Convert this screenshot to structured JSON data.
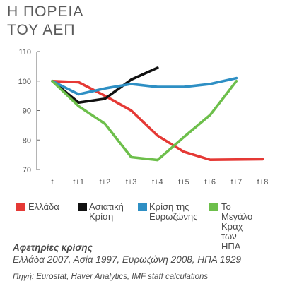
{
  "title": {
    "line1": "Η ΠΟΡΕΙΑ",
    "line2": "ΤΟΥ ΑΕΠ"
  },
  "chart_data": {
    "type": "line",
    "categories": [
      "t",
      "t+1",
      "t+2",
      "t+3",
      "t+4",
      "t+5",
      "t+6",
      "t+7",
      "t+8"
    ],
    "ylim": [
      70,
      110
    ],
    "yticks": [
      70,
      80,
      90,
      100,
      110
    ],
    "grid": false,
    "legend_position": "bottom",
    "series": [
      {
        "name": "Ελλάδα",
        "color": "#e53935",
        "x": [
          0,
          1,
          2,
          3,
          4,
          5,
          6,
          7,
          8
        ],
        "values": [
          100,
          99.6,
          95,
          90,
          81.5,
          76,
          73.3,
          73.4,
          73.5
        ]
      },
      {
        "name": "Ασιατική\nΚρίση",
        "color": "#111111",
        "x": [
          0,
          1,
          2,
          3,
          4
        ],
        "values": [
          100,
          92.7,
          94,
          100.5,
          104.5
        ]
      },
      {
        "name": "Κρίση της\nΕυρωζώνης",
        "color": "#2e8fc4",
        "x": [
          0,
          1,
          2,
          3,
          4,
          5,
          6,
          7
        ],
        "values": [
          100,
          95.5,
          97.5,
          99,
          98,
          98,
          99,
          101
        ]
      },
      {
        "name": "Το Μεγάλο\nΚραχ\nτων ΗΠΑ",
        "color": "#6dbf4b",
        "x": [
          0,
          1,
          2,
          3,
          4,
          5,
          6,
          7
        ],
        "values": [
          100,
          91.5,
          85.5,
          74.2,
          73.2,
          81,
          88.5,
          100
        ]
      }
    ]
  },
  "notes": {
    "heading": "Αφετηρίες κρίσης",
    "line": "Ελλάδα 2007, Ασία 1997, Ευρωζώνη 2008, ΗΠΑ 1929",
    "source": "Πηγή: Eurostat, Haver Analytics, IMF staff calculations"
  }
}
